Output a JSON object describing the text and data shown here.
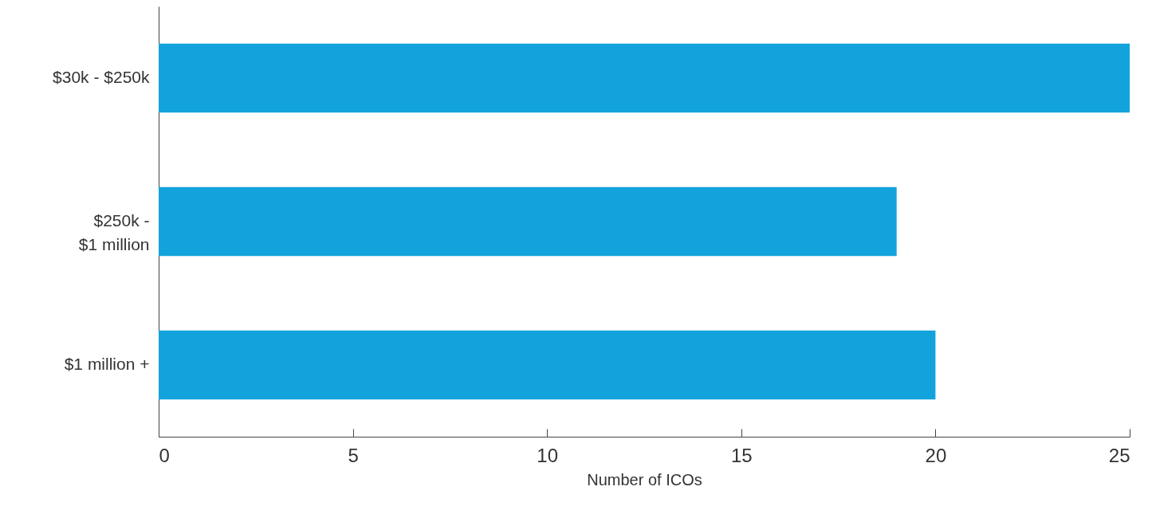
{
  "chart_data": {
    "type": "bar",
    "orientation": "horizontal",
    "xlabel": "Number of ICOs",
    "categories": [
      "$30k - $250k",
      "$250k -\n$1 million",
      "$1 million +"
    ],
    "values": [
      25,
      19,
      20
    ],
    "color": "#12a3dc",
    "xlim": [
      0,
      25
    ],
    "xticks": [
      0,
      5,
      10,
      15,
      20,
      25
    ],
    "grid": false
  }
}
